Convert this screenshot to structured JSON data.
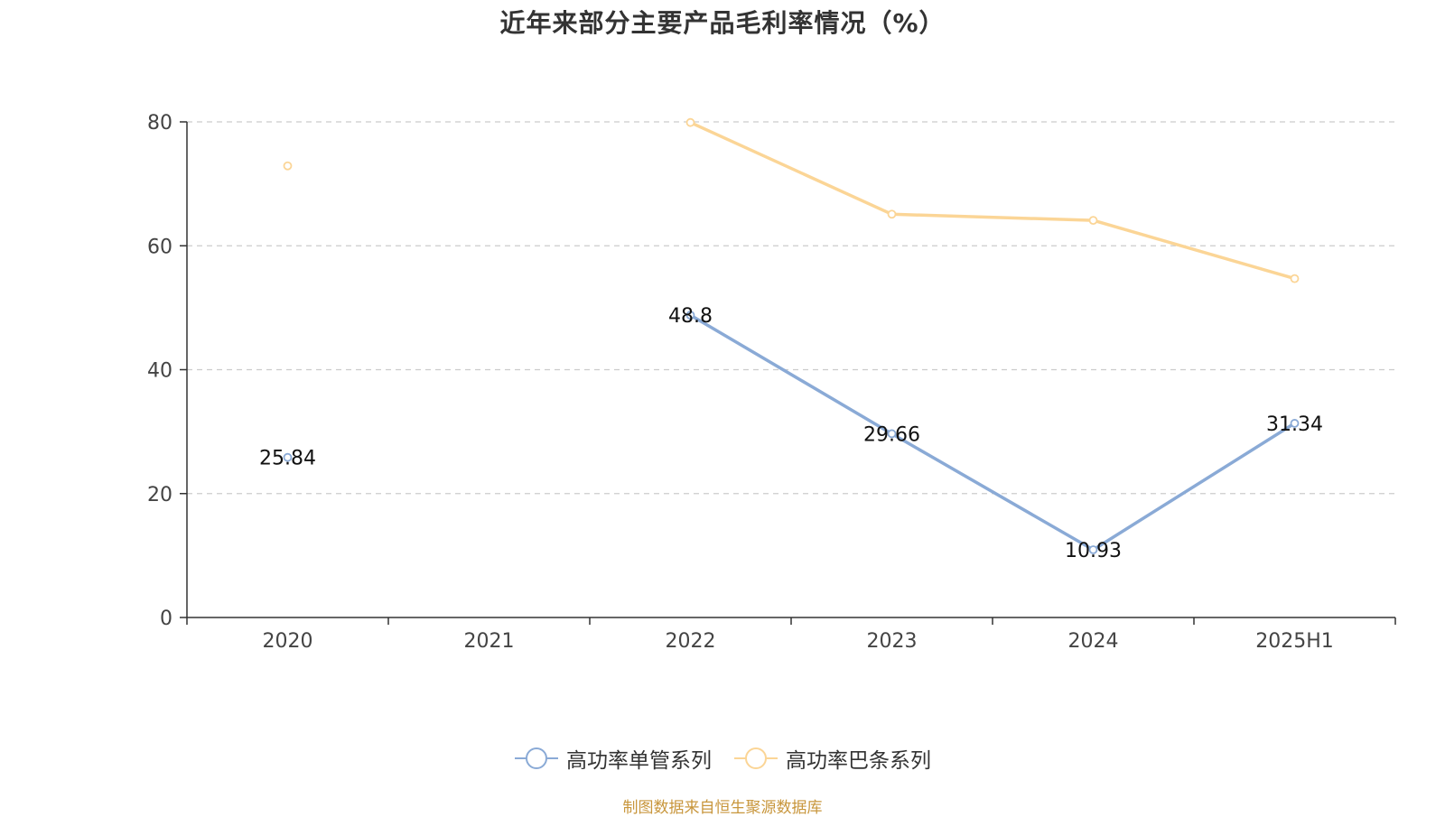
{
  "chart_data": {
    "type": "line",
    "title": "近年来部分主要产品毛利率情况（%）",
    "xlabel": "",
    "ylabel": "",
    "categories": [
      "2020",
      "2021",
      "2022",
      "2023",
      "2024",
      "2025H1"
    ],
    "ylim": [
      0,
      80
    ],
    "yticks": [
      0,
      20,
      40,
      60,
      80
    ],
    "grid": true,
    "legend_position": "bottom",
    "series": [
      {
        "name": "高功率单管系列",
        "color": "#8aaad6",
        "values": [
          25.84,
          null,
          48.8,
          29.66,
          10.93,
          31.34
        ],
        "labels": [
          "25.84",
          null,
          "48.8",
          "29.66",
          "10.93",
          "31.34"
        ]
      },
      {
        "name": "高功率巴条系列",
        "color": "#fbd596",
        "values": [
          72.9,
          null,
          79.9,
          65.1,
          64.1,
          54.7
        ]
      }
    ]
  },
  "footer": {
    "source_text": "制图数据来自恒生聚源数据库",
    "source_color": "#c8963c"
  }
}
